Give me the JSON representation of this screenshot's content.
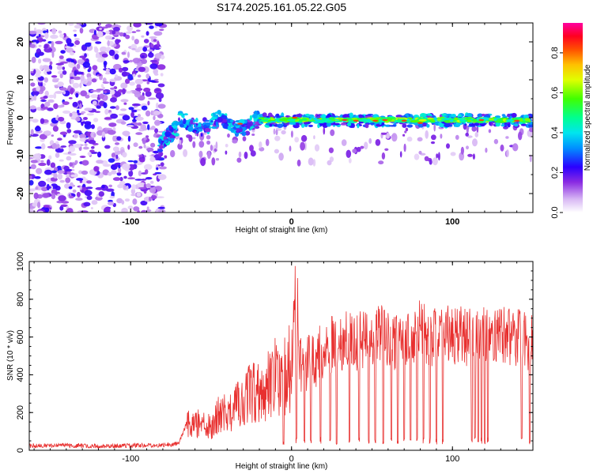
{
  "title": "S174.2025.161.05.22.G05",
  "chart_data": [
    {
      "type": "heatmap",
      "xlabel": "Height of straight line (km)",
      "ylabel": "Frequency (Hz)",
      "xlim": [
        -163,
        150
      ],
      "ylim": [
        -25,
        25
      ],
      "xticks": [
        "-100",
        "0",
        "100"
      ],
      "xtick_values": [
        -100,
        0,
        100
      ],
      "yticks": [
        "-20",
        "-10",
        "0",
        "10",
        "20"
      ],
      "ytick_values": [
        -20,
        -10,
        0,
        10,
        20
      ],
      "colorbar": {
        "label": "Normalized spectral amplitude",
        "range": [
          0,
          0.95
        ],
        "ticks": [
          "0.0",
          "0.2",
          "0.4",
          "0.6",
          "0.8"
        ],
        "tick_values": [
          0,
          0.2,
          0.4,
          0.6,
          0.8
        ],
        "colormap": "rainbow (white-violet-blue-cyan-green-yellow-red-magenta)"
      },
      "regions": [
        {
          "x_range": [
            -163,
            -80
          ],
          "description_level": "scattered noise, amplitude ~0.05-0.25",
          "freq_spread": [
            -25,
            25
          ]
        },
        {
          "x_range": [
            -80,
            -20
          ],
          "ridge_freq": [
            -6,
            0
          ],
          "amplitude": [
            0.2,
            0.45
          ]
        },
        {
          "x_range": [
            -20,
            150
          ],
          "ridge_freq": [
            -1,
            0
          ],
          "amplitude": [
            0.4,
            0.95
          ]
        }
      ],
      "grid": false
    },
    {
      "type": "line",
      "xlabel": "Height of straight line (km)",
      "ylabel": "SNR (10 * v/v)",
      "xlim": [
        -163,
        150
      ],
      "ylim": [
        0,
        1000
      ],
      "xticks": [
        "-100",
        "0",
        "100"
      ],
      "xtick_values": [
        -100,
        0,
        100
      ],
      "yticks": [
        "0",
        "200",
        "400",
        "600",
        "800",
        "1000"
      ],
      "ytick_values": [
        0,
        200,
        400,
        600,
        800,
        1000
      ],
      "color": "#e8302f",
      "x": [
        -163,
        -140,
        -120,
        -100,
        -80,
        -70,
        -65,
        -60,
        -55,
        -50,
        -45,
        -40,
        -35,
        -30,
        -25,
        -20,
        -15,
        -10,
        -5,
        0,
        3,
        5,
        10,
        15,
        20,
        25,
        30,
        35,
        40,
        45,
        50,
        55,
        60,
        65,
        70,
        75,
        80,
        85,
        90,
        95,
        100,
        105,
        110,
        115,
        120,
        125,
        130,
        135,
        140,
        145,
        150
      ],
      "values": [
        25,
        25,
        22,
        25,
        28,
        35,
        150,
        130,
        160,
        120,
        200,
        190,
        230,
        270,
        300,
        320,
        340,
        420,
        380,
        450,
        1000,
        430,
        470,
        490,
        520,
        560,
        540,
        590,
        560,
        600,
        590,
        620,
        600,
        580,
        610,
        600,
        640,
        590,
        610,
        620,
        600,
        610,
        590,
        600,
        620,
        580,
        600,
        610,
        590,
        600,
        560
      ],
      "dropouts_x": [
        -5,
        3,
        8,
        12,
        18,
        24,
        28,
        36,
        42,
        48,
        52,
        57,
        62,
        66,
        70,
        74,
        78,
        82,
        86,
        90,
        94,
        112,
        114,
        116,
        118,
        120,
        122,
        143,
        148
      ],
      "grid": false
    }
  ]
}
